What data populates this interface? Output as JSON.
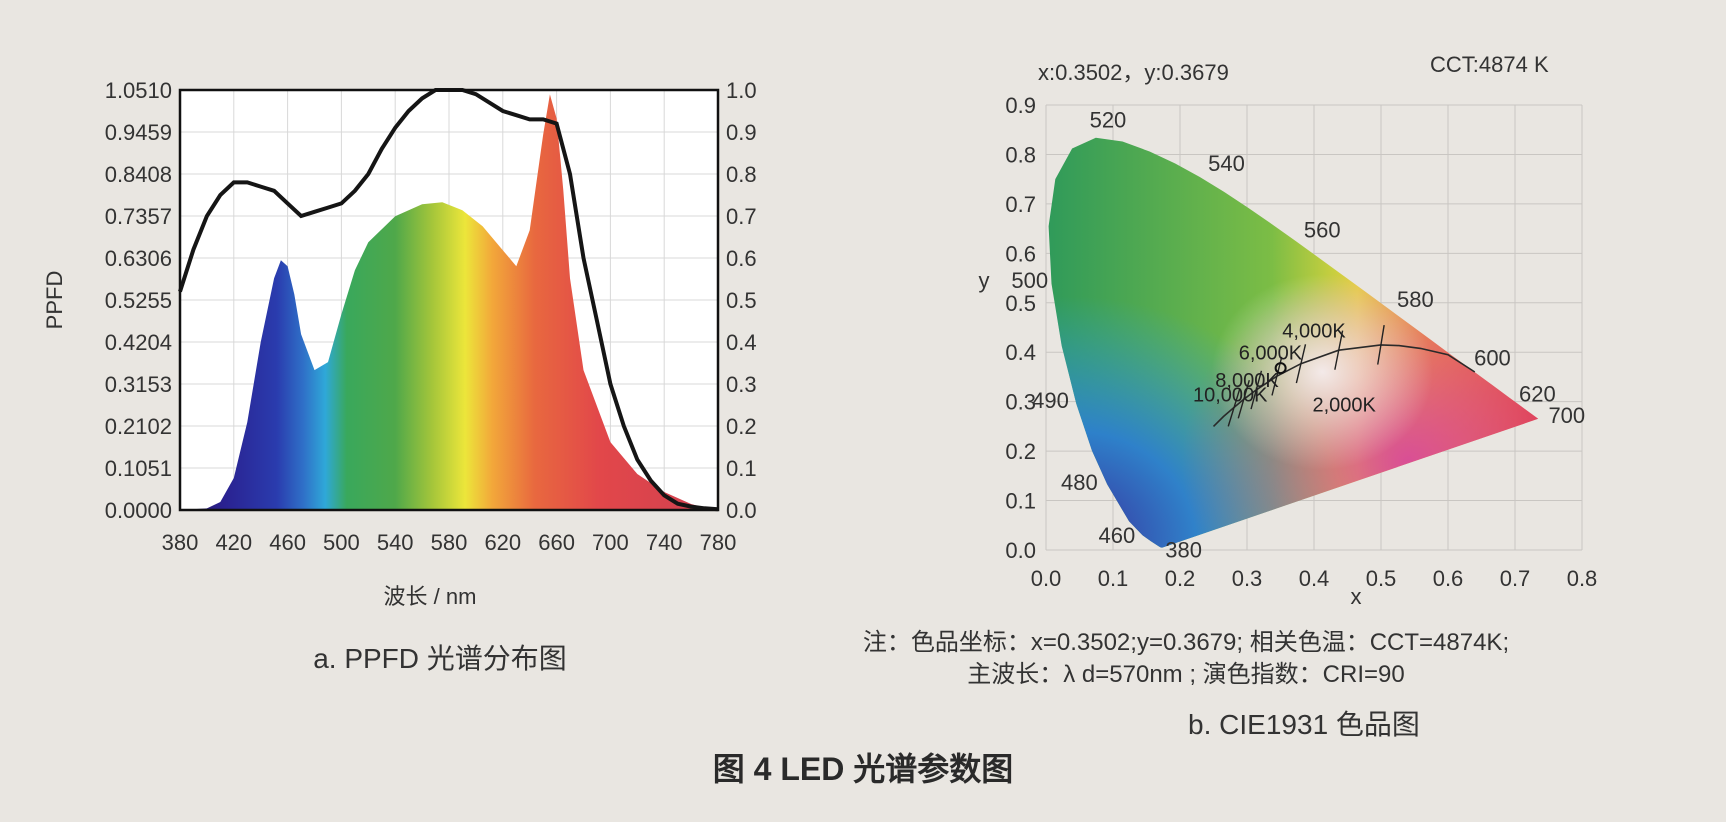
{
  "chart_data": [
    {
      "type": "area",
      "xlabel": "波长 / nm",
      "ylabel": "PPFD",
      "x_ticks": [
        "380",
        "420",
        "460",
        "500",
        "540",
        "580",
        "620",
        "660",
        "700",
        "740",
        "780"
      ],
      "y_ticks": [
        "0.0000",
        "0.1051",
        "0.2102",
        "0.3153",
        "0.4204",
        "0.5255",
        "0.6306",
        "0.7357",
        "0.8408",
        "0.9459",
        "1.0510"
      ],
      "y2_ticks": [
        "0.0",
        "0.1",
        "0.2",
        "0.3",
        "0.4",
        "0.5",
        "0.6",
        "0.7",
        "0.8",
        "0.9",
        "1.0"
      ],
      "xlim": [
        380,
        780
      ],
      "ylim": [
        0,
        1.051
      ],
      "y2lim": [
        0,
        1.0
      ],
      "caption": "a. PPFD 光谱分布图",
      "series": [
        {
          "x": [
            380,
            400,
            410,
            420,
            430,
            440,
            450,
            455,
            460,
            465,
            470,
            480,
            490,
            500,
            510,
            520,
            540,
            560,
            575,
            590,
            605,
            620,
            630,
            640,
            650,
            655,
            660,
            665,
            670,
            680,
            700,
            720,
            740,
            760,
            770,
            780
          ],
          "values": [
            0,
            0.004,
            0.02,
            0.08,
            0.22,
            0.42,
            0.58,
            0.625,
            0.61,
            0.54,
            0.44,
            0.35,
            0.37,
            0.49,
            0.6,
            0.67,
            0.735,
            0.765,
            0.77,
            0.75,
            0.71,
            0.65,
            0.61,
            0.7,
            0.94,
            1.04,
            0.98,
            0.8,
            0.58,
            0.35,
            0.17,
            0.09,
            0.045,
            0.015,
            0.006,
            0
          ]
        },
        {
          "x": [
            380,
            390,
            400,
            410,
            420,
            430,
            440,
            450,
            460,
            470,
            480,
            490,
            500,
            510,
            520,
            530,
            540,
            550,
            560,
            570,
            580,
            590,
            600,
            610,
            620,
            630,
            640,
            650,
            660,
            670,
            680,
            690,
            700,
            710,
            720,
            730,
            740,
            750,
            760,
            770,
            780
          ],
          "values": [
            0.52,
            0.62,
            0.7,
            0.75,
            0.78,
            0.78,
            0.77,
            0.76,
            0.73,
            0.7,
            0.71,
            0.72,
            0.73,
            0.76,
            0.8,
            0.86,
            0.91,
            0.95,
            0.98,
            1.0,
            1.0,
            1.0,
            0.99,
            0.97,
            0.95,
            0.94,
            0.93,
            0.93,
            0.92,
            0.8,
            0.6,
            0.45,
            0.3,
            0.2,
            0.12,
            0.07,
            0.035,
            0.015,
            0.008,
            0.004,
            0.002
          ]
        }
      ]
    },
    {
      "type": "scatter",
      "header_left": "x:0.3502，y:0.3679",
      "header_right": "CCT:4874 K",
      "xlabel": "x",
      "ylabel": "y",
      "x_ticks": [
        "0.0",
        "0.1",
        "0.2",
        "0.3",
        "0.4",
        "0.5",
        "0.6",
        "0.7",
        "0.8"
      ],
      "y_ticks": [
        "0.0",
        "0.1",
        "0.2",
        "0.3",
        "0.4",
        "0.5",
        "0.6",
        "0.7",
        "0.8",
        "0.9"
      ],
      "xlim": [
        0,
        0.8
      ],
      "ylim": [
        0,
        0.9
      ],
      "wavelength_labels": [
        {
          "text": "520",
          "x": 0.074,
          "y": 0.834
        },
        {
          "text": "540",
          "x": 0.23,
          "y": 0.754
        },
        {
          "text": "560",
          "x": 0.373,
          "y": 0.624
        },
        {
          "text": "580",
          "x": 0.512,
          "y": 0.487
        },
        {
          "text": "600",
          "x": 0.627,
          "y": 0.373
        },
        {
          "text": "620",
          "x": 0.691,
          "y": 0.308
        },
        {
          "text": "700",
          "x": 0.735,
          "y": 0.265
        },
        {
          "text": "500",
          "x": 0.008,
          "y": 0.538
        },
        {
          "text": "490",
          "x": 0.045,
          "y": 0.295
        },
        {
          "text": "480",
          "x": 0.091,
          "y": 0.133
        },
        {
          "text": "460",
          "x": 0.144,
          "y": 0.03
        },
        {
          "text": "380",
          "x": 0.175,
          "y": 0.005
        }
      ],
      "cct_labels": [
        "10,000K",
        "8,000K",
        "6,000K",
        "4,000K",
        "2,000K"
      ],
      "white_point": {
        "x": 0.3502,
        "y": 0.3679
      },
      "note_line1": "注：色品坐标：x=0.3502;y=0.3679; 相关色温：CCT=4874K;",
      "note_line2": "主波长：λ d=570nm ; 演色指数：CRI=90",
      "caption": "b. CIE1931 色品图"
    }
  ],
  "figure_title": "图 4 LED 光谱参数图"
}
